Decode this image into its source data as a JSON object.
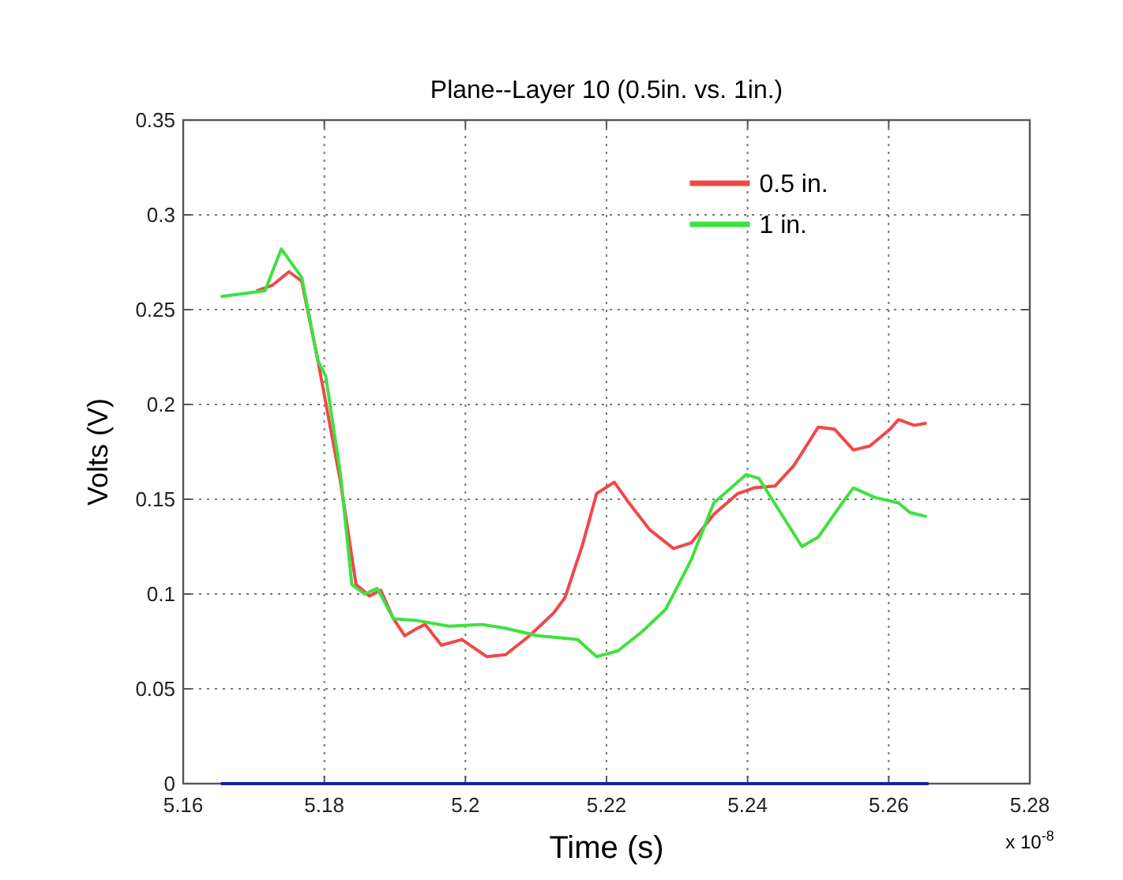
{
  "chart_data": {
    "type": "line",
    "title": "Plane--Layer 10 (0.5in. vs. 1in.)",
    "xlabel": "Time (s)",
    "ylabel": "Volts (V)",
    "annotations": [
      "x 10$^{-8}$"
    ],
    "xlim": [
      5.16,
      5.28
    ],
    "xticks": [
      5.16,
      5.18,
      5.2,
      5.22,
      5.24,
      5.26,
      5.28
    ],
    "ylim": [
      0,
      0.35
    ],
    "yticks": [
      0,
      0.05,
      0.1,
      0.15,
      0.2,
      0.25,
      0.3,
      0.35
    ],
    "grid": true,
    "legend": "top right",
    "line_style": "solid",
    "marker": "none",
    "series": [
      {
        "name": "0.5 in.",
        "color": "#f04848",
        "x": [
          5.1705,
          5.1727,
          5.175,
          5.1768,
          5.1791,
          5.1823,
          5.1845,
          5.1864,
          5.188,
          5.1898,
          5.1914,
          5.1932,
          5.1943,
          5.1966,
          5.1995,
          5.203,
          5.2057,
          5.2091,
          5.2125,
          5.2141,
          5.2166,
          5.2186,
          5.2211,
          5.2232,
          5.2261,
          5.2295,
          5.232,
          5.2352,
          5.2386,
          5.2409,
          5.2439,
          5.2466,
          5.25,
          5.2523,
          5.255,
          5.2573,
          5.2602,
          5.2614,
          5.2636,
          5.2652
        ],
        "values": [
          0.26,
          0.263,
          0.27,
          0.265,
          0.223,
          0.159,
          0.105,
          0.099,
          0.102,
          0.087,
          0.078,
          0.082,
          0.084,
          0.073,
          0.076,
          0.067,
          0.068,
          0.078,
          0.09,
          0.098,
          0.126,
          0.153,
          0.159,
          0.148,
          0.134,
          0.124,
          0.127,
          0.142,
          0.153,
          0.156,
          0.157,
          0.168,
          0.188,
          0.187,
          0.176,
          0.178,
          0.187,
          0.192,
          0.189,
          0.19
        ]
      },
      {
        "name": "1 in.",
        "color": "#40e040",
        "x": [
          5.1655,
          5.1716,
          5.1739,
          5.1768,
          5.1791,
          5.1802,
          5.1823,
          5.1839,
          5.1857,
          5.1875,
          5.1898,
          5.1932,
          5.1977,
          5.2023,
          5.2057,
          5.2102,
          5.2159,
          5.2186,
          5.2216,
          5.225,
          5.2284,
          5.232,
          5.2352,
          5.2398,
          5.2416,
          5.2455,
          5.2477,
          5.25,
          5.2534,
          5.255,
          5.258,
          5.2614,
          5.263,
          5.2652
        ],
        "values": [
          0.257,
          0.26,
          0.282,
          0.267,
          0.223,
          0.215,
          0.163,
          0.105,
          0.1,
          0.103,
          0.087,
          0.086,
          0.083,
          0.084,
          0.082,
          0.078,
          0.076,
          0.067,
          0.07,
          0.08,
          0.092,
          0.118,
          0.148,
          0.163,
          0.161,
          0.138,
          0.125,
          0.13,
          0.148,
          0.156,
          0.151,
          0.148,
          0.143,
          0.141
        ]
      },
      {
        "color": "#1c1ca8",
        "x": [
          5.1655,
          5.2655
        ],
        "values": [
          0,
          0
        ]
      }
    ]
  }
}
